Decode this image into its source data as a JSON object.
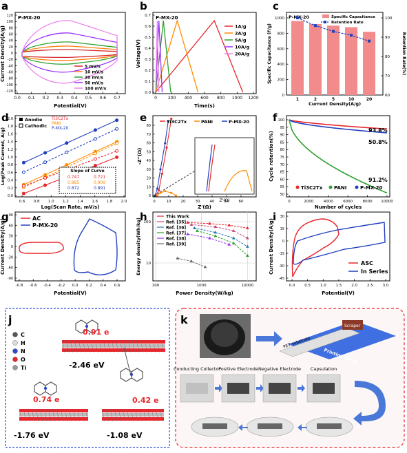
{
  "panels": {
    "a": {
      "letter": "a",
      "tag": "P-MX-20",
      "xlabel": "Potential(V)",
      "ylabel": "Current Density(A/g)",
      "xticks": [
        "0.0",
        "0.1",
        "0.2",
        "0.3",
        "0.4",
        "0.5",
        "0.6",
        "0.7"
      ],
      "yticks": [
        "120",
        "100",
        "80",
        "60",
        "40",
        "20",
        "0",
        "-20",
        "-40",
        "-60",
        "-80",
        "-100",
        "-120"
      ],
      "legend": [
        "5 mV/s",
        "10 mV/s",
        "20 mV/s",
        "50 mV/s",
        "100 mV/s"
      ],
      "colors": [
        "#d62728",
        "#ff7f0e",
        "#2ca02c",
        "#9b30ff",
        "#ee82ee"
      ]
    },
    "b": {
      "letter": "b",
      "tag": "P-MX-20",
      "xlabel": "Time(s)",
      "ylabel": "Voltage(V)",
      "xticks": [
        "0",
        "200",
        "400",
        "600",
        "800",
        "1000",
        "1200"
      ],
      "yticks": [
        "0.0",
        "0.1",
        "0.2",
        "0.3",
        "0.4",
        "0.5",
        "0.6",
        "0.7"
      ],
      "legend": [
        "1A/g",
        "2A/g",
        "5A/g",
        "10A/g",
        "20A/g"
      ],
      "colors": [
        "#e8252a",
        "#ff8c00",
        "#2ca02c",
        "#9b30ff",
        "#ee82ee"
      ]
    },
    "c": {
      "letter": "c",
      "tag": "P-MX-20",
      "xlabel": "Current Density(A/g)",
      "ylabel": "Specific Capacitance (F/g)",
      "ylabel2": "Retention Rate(%)",
      "legend": [
        "Specific Capacitance",
        "Retention Rate"
      ],
      "yticks": [
        "0",
        "200",
        "400",
        "600",
        "800",
        "1000"
      ],
      "y2ticks": [
        "60",
        "70",
        "80",
        "90",
        "100"
      ]
    },
    "d": {
      "letter": "d",
      "xlabel": "Log(Scan Rate, mV/s)",
      "ylabel": "Log(Peak Current, A/g)",
      "legend_anode": "Anodie",
      "legend_cathode": "Cathodic",
      "legend_series": [
        "Ti3C2Tx",
        "PANI",
        "P-MX-20"
      ],
      "slope_title": "Slope of Curve",
      "slopes": [
        [
          "0.747",
          "0.721"
        ],
        [
          "0.885",
          "0.909"
        ],
        [
          "0.872",
          "0.891"
        ]
      ],
      "xticks": [
        "0.6",
        "0.8",
        "1.0",
        "1.2",
        "1.4",
        "1.6",
        "1.8",
        "2.0"
      ],
      "yticks": [
        "0.0",
        "0.2",
        "0.4",
        "0.6",
        "0.8",
        "1.0",
        "1.2",
        "1.4",
        "1.6",
        "1.8",
        "2.0"
      ]
    },
    "e": {
      "letter": "e",
      "xlabel": "Z'(Ω)",
      "ylabel": "-Z''(Ω)",
      "inset_xlabel": "Z'(Ω)",
      "inset_ylabel": "-Z''(Ω)",
      "legend": [
        "Ti3C2Tx",
        "PANI",
        "P-MX-20"
      ],
      "xticks": [
        "0",
        "10",
        "20",
        "30",
        "40",
        "50",
        "60"
      ],
      "yticks": [
        "0",
        "10",
        "20",
        "30",
        "40",
        "50",
        "60",
        "70",
        "80"
      ]
    },
    "f": {
      "letter": "f",
      "xlabel": "Number of cycles",
      "ylabel": "Cycle retention(%)",
      "legend": [
        "Ti3C2Tx",
        "PANI",
        "P-MX-20"
      ],
      "labels": [
        "93.8%",
        "91.2%",
        "50.8%"
      ],
      "xticks": [
        "0",
        "2000",
        "4000",
        "6000",
        "8000",
        "10000"
      ],
      "yticks": [
        "50",
        "55",
        "60",
        "65",
        "70",
        "75",
        "80",
        "85",
        "90",
        "95",
        "100"
      ]
    },
    "g": {
      "letter": "g",
      "xlabel": "Potential(V)",
      "ylabel": "Current Density(A/g)",
      "legend": [
        "AC",
        "P-MX-20"
      ],
      "xticks": [
        "-0.8",
        "-0.6",
        "-0.4",
        "-0.2",
        "0.0",
        "0.2",
        "0.4",
        "0.6"
      ],
      "yticks": [
        "90",
        "60",
        "30",
        "0",
        "-30",
        "-60",
        "-90"
      ]
    },
    "h": {
      "letter": "h",
      "xlabel": "Power Density(W/kg)",
      "ylabel": "Energy density(Wh/kg)",
      "legend": [
        "This Work",
        "Ref. [35]",
        "Ref. [36]",
        "Ref. [37]",
        "Ref. [38]",
        "Ref. [39]"
      ],
      "colors": [
        "#e8252a",
        "#c9497a",
        "#1f77b4",
        "#2ca02c",
        "#9b30ff",
        "#666666"
      ],
      "xticks": [
        "100",
        "1000",
        "10000"
      ],
      "yticks": [
        "10",
        "100"
      ]
    },
    "i": {
      "letter": "i",
      "xlabel": "Potential(V)",
      "ylabel": "Current Density(A/g)",
      "legend": [
        "ASC",
        "In Series"
      ],
      "xticks": [
        "0.0",
        "0.5",
        "1.0",
        "1.5",
        "2.0",
        "2.5",
        "3.0"
      ],
      "yticks": [
        "30",
        "15",
        "0",
        "-15",
        "-30",
        "-45"
      ]
    },
    "j": {
      "letter": "j",
      "legend": [
        "C",
        "H",
        "N",
        "O",
        "Ti"
      ],
      "values": [
        "0.91 e",
        "0.74 e",
        "0.42 e"
      ],
      "energies": [
        "-2.46 eV",
        "-1.76 eV",
        "-1.08 eV"
      ]
    },
    "k": {
      "letter": "k",
      "labels": [
        "Scraper",
        "PET substrate",
        "Printing Plate",
        "Conducting Collector",
        "Positive Electrode",
        "Negative Electrode",
        "Capsulation"
      ]
    }
  },
  "chart_data": [
    {
      "type": "line",
      "panel": "a",
      "series": [
        {
          "name": "5 mV/s"
        },
        {
          "name": "10 mV/s"
        },
        {
          "name": "20 mV/s"
        },
        {
          "name": "50 mV/s"
        },
        {
          "name": "100 mV/s"
        }
      ],
      "xlim": [
        0,
        0.7
      ],
      "ylim": [
        -120,
        120
      ]
    },
    {
      "type": "line",
      "panel": "b",
      "series": [
        {
          "name": "1A/g",
          "x": [
            0,
            720,
            1070
          ],
          "y": [
            0,
            0.7,
            0
          ]
        },
        {
          "name": "2A/g",
          "x": [
            0,
            265,
            520
          ],
          "y": [
            0,
            0.7,
            0
          ]
        },
        {
          "name": "5A/g",
          "x": [
            0,
            95,
            185
          ],
          "y": [
            0,
            0.7,
            0
          ]
        },
        {
          "name": "10A/g",
          "x": [
            0,
            40,
            80
          ],
          "y": [
            0,
            0.7,
            0
          ]
        },
        {
          "name": "20A/g",
          "x": [
            0,
            20,
            40
          ],
          "y": [
            0,
            0.7,
            0
          ]
        }
      ],
      "xlim": [
        0,
        1200
      ],
      "ylim": [
        0,
        0.7
      ]
    },
    {
      "type": "bar",
      "panel": "c",
      "categories": [
        "1",
        "2",
        "5",
        "10",
        "20"
      ],
      "series": [
        {
          "name": "Specific Capacitance",
          "values": [
            960,
            920,
            900,
            880,
            820
          ]
        },
        {
          "name": "Retention Rate",
          "values": [
            100,
            96,
            93,
            91,
            88
          ]
        }
      ],
      "ylim": [
        0,
        1000
      ],
      "y2lim": [
        60,
        100
      ]
    },
    {
      "type": "line",
      "panel": "f",
      "series": [
        {
          "name": "Ti3C2Tx",
          "end": 93.8
        },
        {
          "name": "PANI",
          "end": 50.8
        },
        {
          "name": "P-MX-20",
          "end": 91.2
        }
      ],
      "xlim": [
        0,
        10000
      ],
      "ylim": [
        50,
        100
      ]
    }
  ]
}
